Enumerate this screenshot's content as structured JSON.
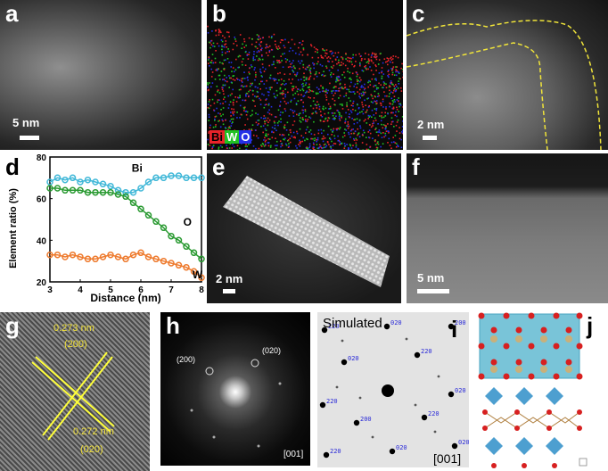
{
  "panels": {
    "a": {
      "label": "a",
      "scale": "5 nm"
    },
    "b": {
      "label": "b",
      "legend": [
        {
          "text": "Bi",
          "color": "#e8232a"
        },
        {
          "text": "W",
          "color": "#21c224"
        },
        {
          "text": "O",
          "color": "#2530e6"
        }
      ]
    },
    "c": {
      "label": "c",
      "scale": "2 nm"
    },
    "d": {
      "label": "d"
    },
    "e": {
      "label": "e",
      "scale": "2 nm"
    },
    "f": {
      "label": "f",
      "scale": "5 nm"
    },
    "g": {
      "label": "g",
      "spacing1": "0.273 nm",
      "plane1": "(200)",
      "spacing2": "0.272 nm",
      "plane2": "(020)"
    },
    "h": {
      "label": "h",
      "spot1": "(200)",
      "spot2": "(020)",
      "zone": "[001]"
    },
    "i": {
      "label": "i",
      "title": "Simulated",
      "zone": "[001]",
      "spots": [
        "220",
        "020",
        "200",
        "020",
        "220",
        "220",
        "020",
        "200",
        "220",
        "220",
        "020",
        "020"
      ]
    },
    "j": {
      "label": "j"
    }
  },
  "chart_data": {
    "type": "line",
    "xlabel": "Distance (nm)",
    "ylabel": "Element ratio (%)",
    "xlim": [
      3,
      8
    ],
    "ylim": [
      20,
      80
    ],
    "xticks": [
      "3",
      "4",
      "5",
      "6",
      "7",
      "8"
    ],
    "yticks": [
      "20",
      "40",
      "60",
      "80"
    ],
    "series": [
      {
        "name": "Bi",
        "color": "#41b8d8",
        "x": [
          3.0,
          3.25,
          3.5,
          3.75,
          4.0,
          4.25,
          4.5,
          4.75,
          5.0,
          5.25,
          5.5,
          5.75,
          6.0,
          6.25,
          6.5,
          6.75,
          7.0,
          7.25,
          7.5,
          7.75,
          8.0
        ],
        "y": [
          68,
          70,
          69,
          70,
          68,
          69,
          68,
          67,
          66,
          64,
          63,
          63,
          65,
          68,
          70,
          70,
          71,
          71,
          70,
          70,
          70
        ]
      },
      {
        "name": "O",
        "color": "#2a9a32",
        "x": [
          3.0,
          3.25,
          3.5,
          3.75,
          4.0,
          4.25,
          4.5,
          4.75,
          5.0,
          5.25,
          5.5,
          5.75,
          6.0,
          6.25,
          6.5,
          6.75,
          7.0,
          7.25,
          7.5,
          7.75,
          8.0
        ],
        "y": [
          65,
          65,
          64,
          64,
          64,
          63,
          63,
          63,
          63,
          62,
          61,
          58,
          55,
          52,
          49,
          46,
          42,
          40,
          37,
          34,
          31
        ]
      },
      {
        "name": "W",
        "color": "#ee7a2d",
        "x": [
          3.0,
          3.25,
          3.5,
          3.75,
          4.0,
          4.25,
          4.5,
          4.75,
          5.0,
          5.25,
          5.5,
          5.75,
          6.0,
          6.25,
          6.5,
          6.75,
          7.0,
          7.25,
          7.5,
          7.75,
          8.0
        ],
        "y": [
          33,
          33,
          32,
          33,
          32,
          31,
          31,
          32,
          33,
          32,
          31,
          33,
          34,
          32,
          31,
          30,
          29,
          28,
          27,
          25,
          22
        ]
      }
    ]
  }
}
